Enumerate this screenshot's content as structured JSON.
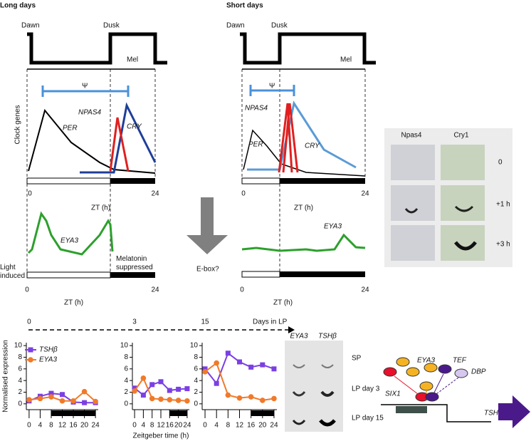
{
  "long_days": {
    "title": "Long days",
    "dawn": "Dawn",
    "dusk": "Dusk",
    "mel": "Mel",
    "psi": "Ψ",
    "clock_genes": "Clock genes",
    "per": "PER",
    "npas4": "NPAS4",
    "cry": "CRY",
    "zt_start": "0",
    "zt_end": "24",
    "zt_label": "ZT (h)",
    "light_induced": "Light induced",
    "eya3": "EYA3",
    "melatonin_suppressed": "Melatonin suppressed",
    "zt2_start": "0",
    "zt2_end": "24",
    "zt2_label": "ZT (h)"
  },
  "ebox": "E-box?",
  "short_days": {
    "title": "Short days",
    "dawn": "Dawn",
    "dusk": "Dusk",
    "mel": "Mel",
    "psi": "Ψ",
    "per": "PER",
    "npas4": "NPAS4",
    "cry": "CRY",
    "zt_start": "0",
    "zt_end": "24",
    "zt_label": "ZT (h)",
    "eya3": "EYA3",
    "zt2_start": "0",
    "zt2_end": "24",
    "zt2_label": "ZT (h)"
  },
  "photos_top": {
    "columns": [
      "Npas4",
      "Cry1"
    ],
    "rows": [
      "0",
      "+1 h",
      "+3 h"
    ]
  },
  "days_in_lp": "Days in LP",
  "chart_data": [
    {
      "type": "line",
      "title": "0",
      "ylabel": "Normalised expression",
      "legend": "top-left",
      "x": [
        0,
        4,
        8,
        12,
        16,
        20,
        24
      ],
      "xlim": [
        -1,
        25
      ],
      "ylim": [
        -1,
        10.5
      ],
      "xticks": [
        0,
        4,
        8,
        12,
        16,
        20,
        24
      ],
      "yticks": [
        0,
        2,
        4,
        6,
        8,
        10
      ],
      "night": [
        8,
        24
      ],
      "series": [
        {
          "name": "TSHβ",
          "color": "#7b3fe4",
          "marker": "square",
          "values": [
            0.5,
            1.3,
            1.8,
            1.6,
            0.3,
            0.2,
            0.2
          ]
        },
        {
          "name": "EYA3",
          "color": "#f07a2a",
          "marker": "circle",
          "values": [
            0.7,
            0.9,
            1.2,
            0.5,
            0.5,
            2.1,
            0.4
          ]
        }
      ]
    },
    {
      "type": "line",
      "title": "3",
      "xlabel": "Zeitgeber time (h)",
      "x": [
        0,
        4,
        8,
        12,
        16,
        20,
        24
      ],
      "xlim": [
        -1,
        25
      ],
      "ylim": [
        -1,
        10.5
      ],
      "xticks": [
        0,
        4,
        8,
        12,
        16,
        20,
        24
      ],
      "yticks": [
        0,
        2,
        4,
        6,
        8,
        10
      ],
      "night": [
        16,
        24
      ],
      "series": [
        {
          "color": "#7b3fe4",
          "marker": "square",
          "values": [
            2.7,
            1.5,
            3.3,
            3.8,
            2.3,
            2.5,
            2.6
          ]
        },
        {
          "color": "#f07a2a",
          "marker": "circle",
          "values": [
            2.2,
            4.4,
            0.9,
            0.8,
            0.7,
            0.6,
            0.5
          ]
        }
      ]
    },
    {
      "type": "line",
      "title": "15",
      "x": [
        0,
        4,
        8,
        12,
        16,
        20,
        24
      ],
      "xlim": [
        -1,
        25
      ],
      "ylim": [
        -1,
        10.5
      ],
      "xticks": [
        0,
        4,
        8,
        12,
        16,
        20,
        24
      ],
      "yticks": [
        0,
        2,
        4,
        6,
        8,
        10
      ],
      "night": [
        16,
        24
      ],
      "series": [
        {
          "color": "#7b3fe4",
          "marker": "square",
          "values": [
            6.0,
            3.5,
            8.7,
            7.2,
            6.3,
            6.7,
            6.0
          ]
        },
        {
          "color": "#f07a2a",
          "marker": "circle",
          "values": [
            5.5,
            7.0,
            1.5,
            1.0,
            1.2,
            0.6,
            0.9
          ]
        }
      ]
    }
  ],
  "photos_bottom": {
    "columns": [
      "EYA3",
      "TSHβ"
    ],
    "rows": [
      "SP",
      "LP day 3",
      "LP day 15"
    ]
  },
  "diagram": {
    "eya3": "EYA3",
    "tef": "TEF",
    "dbp": "DBP",
    "six1": "SIX1",
    "tshb": "TSHβ"
  }
}
